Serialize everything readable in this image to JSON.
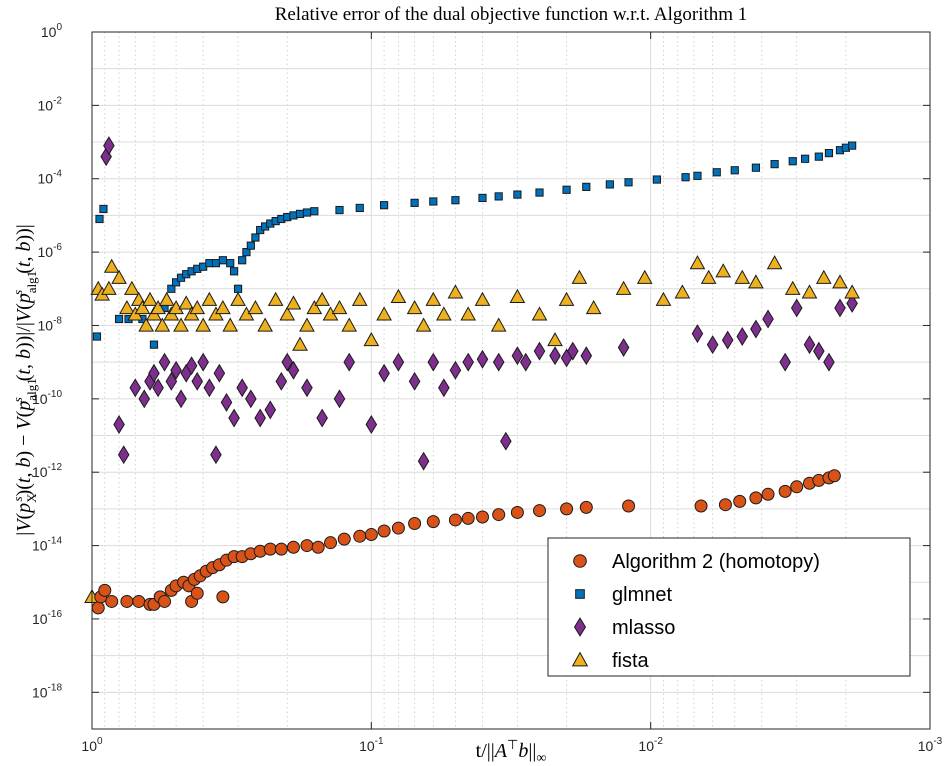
{
  "chart_data": {
    "type": "scatter",
    "title": "Relative error of the dual objective function w.r.t. Algorithm 1",
    "xlabel": "t/||A⊤b||∞",
    "ylabel": "|V(pXs(t,b)) − V(palg1s(t,b))|/|V(palg1s(t,b))|",
    "xscale": "log",
    "yscale": "log",
    "x_reversed": true,
    "xlim": [
      1,
      0.001
    ],
    "ylim": [
      1e-19,
      1
    ],
    "grid": true,
    "x_ticks": [
      {
        "base": "10",
        "exp": "0",
        "value": 1
      },
      {
        "base": "10",
        "exp": "-1",
        "value": 0.1
      },
      {
        "base": "10",
        "exp": "-2",
        "value": 0.01
      },
      {
        "base": "10",
        "exp": "-3",
        "value": 0.001
      }
    ],
    "y_ticks": [
      {
        "base": "10",
        "exp": "0",
        "value": 1
      },
      {
        "base": "10",
        "exp": "-2",
        "value": 0.01
      },
      {
        "base": "10",
        "exp": "-4",
        "value": 0.0001
      },
      {
        "base": "10",
        "exp": "-6",
        "value": 1e-06
      },
      {
        "base": "10",
        "exp": "-8",
        "value": 1e-08
      },
      {
        "base": "10",
        "exp": "-10",
        "value": 1e-10
      },
      {
        "base": "10",
        "exp": "-12",
        "value": 1e-12
      },
      {
        "base": "10",
        "exp": "-14",
        "value": 1e-14
      },
      {
        "base": "10",
        "exp": "-16",
        "value": 1e-16
      },
      {
        "base": "10",
        "exp": "-18",
        "value": 1e-18
      }
    ],
    "legend_position": "bottom-right",
    "series": [
      {
        "name": "Algorithm 2 (homotopy)",
        "marker": "circle",
        "color": "#d95319",
        "points": [
          [
            0.95,
            2e-16
          ],
          [
            0.93,
            4e-16
          ],
          [
            0.9,
            6e-16
          ],
          [
            0.85,
            3e-16
          ],
          [
            0.75,
            3e-16
          ],
          [
            0.68,
            3e-16
          ],
          [
            0.62,
            2.5e-16
          ],
          [
            0.6,
            2.5e-16
          ],
          [
            0.57,
            4e-16
          ],
          [
            0.55,
            3e-16
          ],
          [
            0.52,
            6e-16
          ],
          [
            0.5,
            8e-16
          ],
          [
            0.47,
            1e-15
          ],
          [
            0.45,
            8e-16
          ],
          [
            0.43,
            1.2e-15
          ],
          [
            0.41,
            1.5e-15
          ],
          [
            0.39,
            2e-15
          ],
          [
            0.37,
            2.5e-15
          ],
          [
            0.35,
            3e-15
          ],
          [
            0.33,
            4e-15
          ],
          [
            0.31,
            5e-15
          ],
          [
            0.29,
            5e-15
          ],
          [
            0.27,
            6e-15
          ],
          [
            0.25,
            7e-15
          ],
          [
            0.23,
            8e-15
          ],
          [
            0.21,
            8e-15
          ],
          [
            0.19,
            9e-15
          ],
          [
            0.17,
            1e-14
          ],
          [
            0.155,
            9e-15
          ],
          [
            0.14,
            1.2e-14
          ],
          [
            0.125,
            1.5e-14
          ],
          [
            0.11,
            1.8e-14
          ],
          [
            0.1,
            2e-14
          ],
          [
            0.09,
            2.5e-14
          ],
          [
            0.08,
            3e-14
          ],
          [
            0.07,
            4e-14
          ],
          [
            0.06,
            4.5e-14
          ],
          [
            0.05,
            5e-14
          ],
          [
            0.045,
            5.5e-14
          ],
          [
            0.04,
            6e-14
          ],
          [
            0.035,
            7e-14
          ],
          [
            0.03,
            8e-14
          ],
          [
            0.025,
            9e-14
          ],
          [
            0.02,
            1e-13
          ],
          [
            0.017,
            1.1e-13
          ],
          [
            0.012,
            1.2e-13
          ],
          [
            0.0066,
            1.2e-13
          ],
          [
            0.0054,
            1.3e-13
          ],
          [
            0.0048,
            1.6e-13
          ],
          [
            0.0042,
            2e-13
          ],
          [
            0.0038,
            2.5e-13
          ],
          [
            0.0033,
            3e-13
          ],
          [
            0.003,
            4e-13
          ],
          [
            0.0027,
            5e-13
          ],
          [
            0.0025,
            6e-13
          ],
          [
            0.0023,
            7e-13
          ],
          [
            0.0022,
            8e-13
          ],
          [
            0.44,
            3e-16
          ],
          [
            0.42,
            5e-16
          ],
          [
            0.34,
            4e-16
          ]
        ]
      },
      {
        "name": "glmnet",
        "marker": "square",
        "color": "#0072bd",
        "points": [
          [
            0.96,
            5e-09
          ],
          [
            0.94,
            8e-06
          ],
          [
            0.91,
            1.5e-05
          ],
          [
            0.8,
            1.5e-08
          ],
          [
            0.74,
            1.5e-08
          ],
          [
            0.66,
            1.5e-08
          ],
          [
            0.6,
            3e-09
          ],
          [
            0.55,
            3e-08
          ],
          [
            0.52,
            1e-07
          ],
          [
            0.5,
            1.5e-07
          ],
          [
            0.48,
            2e-07
          ],
          [
            0.46,
            2.5e-07
          ],
          [
            0.44,
            3e-07
          ],
          [
            0.42,
            3.5e-07
          ],
          [
            0.4,
            4e-07
          ],
          [
            0.38,
            5e-07
          ],
          [
            0.36,
            5e-07
          ],
          [
            0.34,
            6e-07
          ],
          [
            0.32,
            5e-07
          ],
          [
            0.31,
            3e-07
          ],
          [
            0.3,
            1e-07
          ],
          [
            0.29,
            6e-07
          ],
          [
            0.28,
            1e-06
          ],
          [
            0.27,
            1.5e-06
          ],
          [
            0.26,
            2.5e-06
          ],
          [
            0.25,
            4e-06
          ],
          [
            0.24,
            5e-06
          ],
          [
            0.23,
            6e-06
          ],
          [
            0.22,
            7e-06
          ],
          [
            0.21,
            8e-06
          ],
          [
            0.2,
            9e-06
          ],
          [
            0.19,
            1e-05
          ],
          [
            0.18,
            1.1e-05
          ],
          [
            0.17,
            1.2e-05
          ],
          [
            0.16,
            1.3e-05
          ],
          [
            0.13,
            1.4e-05
          ],
          [
            0.11,
            1.6e-05
          ],
          [
            0.09,
            1.9e-05
          ],
          [
            0.07,
            2.2e-05
          ],
          [
            0.06,
            2.4e-05
          ],
          [
            0.05,
            2.6e-05
          ],
          [
            0.04,
            3e-05
          ],
          [
            0.035,
            3.3e-05
          ],
          [
            0.03,
            3.7e-05
          ],
          [
            0.025,
            4.2e-05
          ],
          [
            0.02,
            5e-05
          ],
          [
            0.017,
            6e-05
          ],
          [
            0.014,
            7e-05
          ],
          [
            0.012,
            8e-05
          ],
          [
            0.0095,
            9.5e-05
          ],
          [
            0.0075,
            0.00011
          ],
          [
            0.0068,
            0.00012
          ],
          [
            0.0058,
            0.00015
          ],
          [
            0.005,
            0.00017
          ],
          [
            0.0042,
            0.0002
          ],
          [
            0.0036,
            0.00025
          ],
          [
            0.0031,
            0.0003
          ],
          [
            0.0028,
            0.00035
          ],
          [
            0.0025,
            0.0004
          ],
          [
            0.0023,
            0.0005
          ],
          [
            0.0021,
            0.0006
          ],
          [
            0.002,
            0.0007
          ],
          [
            0.0019,
            0.0008
          ]
        ]
      },
      {
        "name": "mlasso",
        "marker": "diamond",
        "color": "#7e2f8e",
        "points": [
          [
            0.89,
            0.0004
          ],
          [
            0.87,
            0.0008
          ],
          [
            0.8,
            2e-11
          ],
          [
            0.77,
            3e-12
          ],
          [
            0.7,
            2e-10
          ],
          [
            0.65,
            1e-10
          ],
          [
            0.62,
            3e-10
          ],
          [
            0.6,
            5e-10
          ],
          [
            0.58,
            2e-10
          ],
          [
            0.55,
            1e-09
          ],
          [
            0.52,
            3e-10
          ],
          [
            0.5,
            6e-10
          ],
          [
            0.48,
            1e-10
          ],
          [
            0.46,
            5e-10
          ],
          [
            0.44,
            8e-10
          ],
          [
            0.42,
            3e-10
          ],
          [
            0.4,
            1e-09
          ],
          [
            0.38,
            2e-10
          ],
          [
            0.36,
            3e-12
          ],
          [
            0.35,
            5e-10
          ],
          [
            0.33,
            8e-11
          ],
          [
            0.31,
            3e-11
          ],
          [
            0.29,
            2e-10
          ],
          [
            0.27,
            1e-10
          ],
          [
            0.25,
            3e-11
          ],
          [
            0.23,
            5e-11
          ],
          [
            0.21,
            3e-10
          ],
          [
            0.2,
            1e-09
          ],
          [
            0.19,
            6e-10
          ],
          [
            0.17,
            2e-10
          ],
          [
            0.15,
            3e-11
          ],
          [
            0.13,
            1e-10
          ],
          [
            0.12,
            1e-09
          ],
          [
            0.1,
            2e-11
          ],
          [
            0.09,
            5e-10
          ],
          [
            0.08,
            1e-09
          ],
          [
            0.07,
            3e-10
          ],
          [
            0.065,
            2e-12
          ],
          [
            0.06,
            1e-09
          ],
          [
            0.055,
            2e-10
          ],
          [
            0.05,
            6e-10
          ],
          [
            0.045,
            1e-09
          ],
          [
            0.04,
            1.2e-09
          ],
          [
            0.035,
            1e-09
          ],
          [
            0.033,
            7e-12
          ],
          [
            0.03,
            1.5e-09
          ],
          [
            0.028,
            1e-09
          ],
          [
            0.025,
            2e-09
          ],
          [
            0.022,
            1.5e-09
          ],
          [
            0.02,
            1.3e-09
          ],
          [
            0.019,
            2e-09
          ],
          [
            0.017,
            1.5e-09
          ],
          [
            0.0125,
            2.5e-09
          ],
          [
            0.0068,
            6e-09
          ],
          [
            0.006,
            3e-09
          ],
          [
            0.0053,
            4e-09
          ],
          [
            0.0047,
            5e-09
          ],
          [
            0.0042,
            8e-09
          ],
          [
            0.0038,
            1.5e-08
          ],
          [
            0.0033,
            1e-09
          ],
          [
            0.003,
            3e-08
          ],
          [
            0.0027,
            3e-09
          ],
          [
            0.0025,
            2e-09
          ],
          [
            0.0023,
            1e-09
          ],
          [
            0.0021,
            3e-08
          ],
          [
            0.0019,
            4e-08
          ]
        ]
      },
      {
        "name": "fista",
        "marker": "triangle",
        "color": "#edb120",
        "points": [
          [
            1.0,
            4e-16
          ],
          [
            0.95,
            1e-07
          ],
          [
            0.92,
            7e-08
          ],
          [
            0.87,
            1e-07
          ],
          [
            0.85,
            4e-07
          ],
          [
            0.8,
            2e-07
          ],
          [
            0.75,
            3e-08
          ],
          [
            0.72,
            1e-07
          ],
          [
            0.7,
            2e-08
          ],
          [
            0.68,
            5e-08
          ],
          [
            0.66,
            3e-08
          ],
          [
            0.64,
            1e-08
          ],
          [
            0.62,
            5e-08
          ],
          [
            0.6,
            2e-08
          ],
          [
            0.58,
            3e-08
          ],
          [
            0.56,
            1e-08
          ],
          [
            0.54,
            5e-08
          ],
          [
            0.52,
            2e-08
          ],
          [
            0.5,
            3e-08
          ],
          [
            0.48,
            1e-08
          ],
          [
            0.46,
            4e-08
          ],
          [
            0.44,
            2e-08
          ],
          [
            0.42,
            3e-08
          ],
          [
            0.4,
            1e-08
          ],
          [
            0.38,
            5e-08
          ],
          [
            0.36,
            2e-08
          ],
          [
            0.34,
            3e-08
          ],
          [
            0.32,
            1e-08
          ],
          [
            0.3,
            5e-08
          ],
          [
            0.28,
            2e-08
          ],
          [
            0.26,
            3e-08
          ],
          [
            0.24,
            1e-08
          ],
          [
            0.22,
            5e-08
          ],
          [
            0.2,
            2e-08
          ],
          [
            0.19,
            4e-08
          ],
          [
            0.18,
            3e-09
          ],
          [
            0.17,
            1e-08
          ],
          [
            0.16,
            3e-08
          ],
          [
            0.15,
            5e-08
          ],
          [
            0.14,
            2e-08
          ],
          [
            0.13,
            3e-08
          ],
          [
            0.12,
            1e-08
          ],
          [
            0.11,
            5e-08
          ],
          [
            0.1,
            4e-09
          ],
          [
            0.09,
            2e-08
          ],
          [
            0.08,
            6e-08
          ],
          [
            0.07,
            3e-08
          ],
          [
            0.065,
            1e-08
          ],
          [
            0.06,
            5e-08
          ],
          [
            0.055,
            2e-08
          ],
          [
            0.05,
            8e-08
          ],
          [
            0.045,
            2e-08
          ],
          [
            0.04,
            5e-08
          ],
          [
            0.035,
            1e-08
          ],
          [
            0.03,
            6e-08
          ],
          [
            0.025,
            2e-08
          ],
          [
            0.022,
            4e-09
          ],
          [
            0.02,
            5e-08
          ],
          [
            0.018,
            2e-07
          ],
          [
            0.016,
            3e-08
          ],
          [
            0.0125,
            1e-07
          ],
          [
            0.0105,
            2e-07
          ],
          [
            0.009,
            5e-08
          ],
          [
            0.0077,
            8e-08
          ],
          [
            0.0068,
            5e-07
          ],
          [
            0.0062,
            2e-07
          ],
          [
            0.0055,
            3e-07
          ],
          [
            0.0047,
            2e-07
          ],
          [
            0.0042,
            1.5e-07
          ],
          [
            0.0036,
            5e-07
          ],
          [
            0.0031,
            1e-07
          ],
          [
            0.0027,
            8e-08
          ],
          [
            0.0024,
            2e-07
          ],
          [
            0.0021,
            1.5e-07
          ],
          [
            0.0019,
            8e-08
          ]
        ]
      }
    ]
  }
}
